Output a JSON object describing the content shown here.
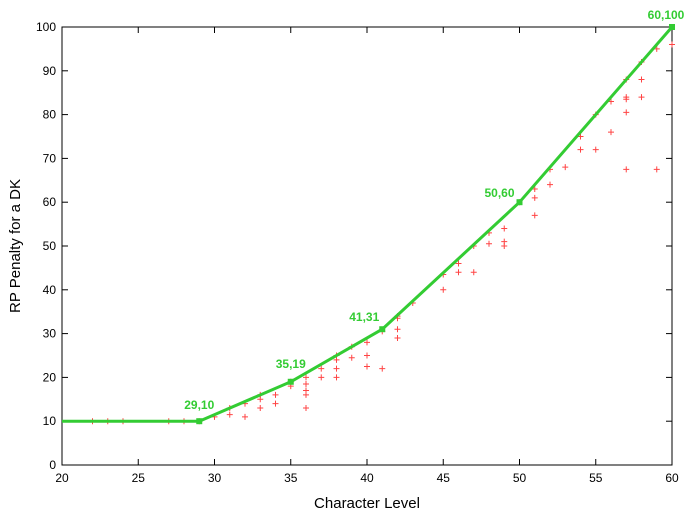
{
  "chart_data": {
    "type": "scatter",
    "title": "",
    "xlabel": "Character Level",
    "ylabel": "RP Penalty for a DK",
    "xlim": [
      20,
      60
    ],
    "ylim": [
      0,
      100
    ],
    "xticks": [
      20,
      25,
      30,
      35,
      40,
      45,
      50,
      55,
      60
    ],
    "yticks": [
      0,
      10,
      20,
      30,
      40,
      50,
      60,
      70,
      80,
      90,
      100
    ],
    "grid": false,
    "colors": {
      "line": "#33cc33",
      "scatter": "#ff4444",
      "labels": "#33cc33"
    },
    "series": [
      {
        "type": "line",
        "values": [
          {
            "x": 20,
            "y": 10
          },
          {
            "x": 29,
            "y": 10
          },
          {
            "x": 35,
            "y": 19
          },
          {
            "x": 41,
            "y": 31
          },
          {
            "x": 50,
            "y": 60
          },
          {
            "x": 60,
            "y": 100
          }
        ]
      },
      {
        "type": "scatter",
        "values": [
          {
            "x": 22,
            "y": 10
          },
          {
            "x": 23,
            "y": 10
          },
          {
            "x": 24,
            "y": 10
          },
          {
            "x": 27,
            "y": 10
          },
          {
            "x": 28,
            "y": 10
          },
          {
            "x": 29,
            "y": 10
          },
          {
            "x": 30,
            "y": 11
          },
          {
            "x": 31,
            "y": 11.5
          },
          {
            "x": 31,
            "y": 13
          },
          {
            "x": 32,
            "y": 11
          },
          {
            "x": 32,
            "y": 14
          },
          {
            "x": 33,
            "y": 13
          },
          {
            "x": 33,
            "y": 15
          },
          {
            "x": 33,
            "y": 16
          },
          {
            "x": 34,
            "y": 14
          },
          {
            "x": 34,
            "y": 16
          },
          {
            "x": 35,
            "y": 18
          },
          {
            "x": 35,
            "y": 19
          },
          {
            "x": 36,
            "y": 13
          },
          {
            "x": 36,
            "y": 16
          },
          {
            "x": 36,
            "y": 17
          },
          {
            "x": 36,
            "y": 18.5
          },
          {
            "x": 36,
            "y": 20
          },
          {
            "x": 37,
            "y": 20
          },
          {
            "x": 37,
            "y": 22
          },
          {
            "x": 38,
            "y": 20
          },
          {
            "x": 38,
            "y": 22
          },
          {
            "x": 38,
            "y": 24
          },
          {
            "x": 38,
            "y": 25
          },
          {
            "x": 39,
            "y": 24.5
          },
          {
            "x": 39,
            "y": 27
          },
          {
            "x": 40,
            "y": 22.5
          },
          {
            "x": 40,
            "y": 25
          },
          {
            "x": 40,
            "y": 28
          },
          {
            "x": 41,
            "y": 22
          },
          {
            "x": 41,
            "y": 30.5
          },
          {
            "x": 42,
            "y": 29
          },
          {
            "x": 42,
            "y": 31
          },
          {
            "x": 42,
            "y": 33.5
          },
          {
            "x": 42,
            "y": 34
          },
          {
            "x": 43,
            "y": 37
          },
          {
            "x": 45,
            "y": 40
          },
          {
            "x": 45,
            "y": 43.5
          },
          {
            "x": 46,
            "y": 44
          },
          {
            "x": 46,
            "y": 46
          },
          {
            "x": 47,
            "y": 44
          },
          {
            "x": 47,
            "y": 50
          },
          {
            "x": 48,
            "y": 50.5
          },
          {
            "x": 48,
            "y": 53
          },
          {
            "x": 49,
            "y": 50
          },
          {
            "x": 49,
            "y": 51
          },
          {
            "x": 49,
            "y": 54
          },
          {
            "x": 50,
            "y": 60
          },
          {
            "x": 51,
            "y": 57
          },
          {
            "x": 51,
            "y": 61
          },
          {
            "x": 51,
            "y": 63
          },
          {
            "x": 52,
            "y": 64
          },
          {
            "x": 52,
            "y": 67.5
          },
          {
            "x": 53,
            "y": 68
          },
          {
            "x": 54,
            "y": 72
          },
          {
            "x": 54,
            "y": 75
          },
          {
            "x": 55,
            "y": 72
          },
          {
            "x": 55,
            "y": 80
          },
          {
            "x": 56,
            "y": 76
          },
          {
            "x": 56,
            "y": 83
          },
          {
            "x": 57,
            "y": 67.5
          },
          {
            "x": 57,
            "y": 80.5
          },
          {
            "x": 57,
            "y": 83.5
          },
          {
            "x": 57,
            "y": 84
          },
          {
            "x": 57,
            "y": 88
          },
          {
            "x": 58,
            "y": 84
          },
          {
            "x": 58,
            "y": 88
          },
          {
            "x": 58,
            "y": 92
          },
          {
            "x": 59,
            "y": 67.5
          },
          {
            "x": 59,
            "y": 95
          },
          {
            "x": 60,
            "y": 96
          },
          {
            "x": 60,
            "y": 100
          }
        ]
      }
    ],
    "annotations": [
      {
        "text": "29,10",
        "x": 29,
        "y": 10
      },
      {
        "text": "35,19",
        "x": 35,
        "y": 19
      },
      {
        "text": "41,31",
        "x": 41,
        "y": 31
      },
      {
        "text": "50,60",
        "x": 50,
        "y": 60
      },
      {
        "text": "60,100",
        "x": 60,
        "y": 100
      }
    ]
  }
}
